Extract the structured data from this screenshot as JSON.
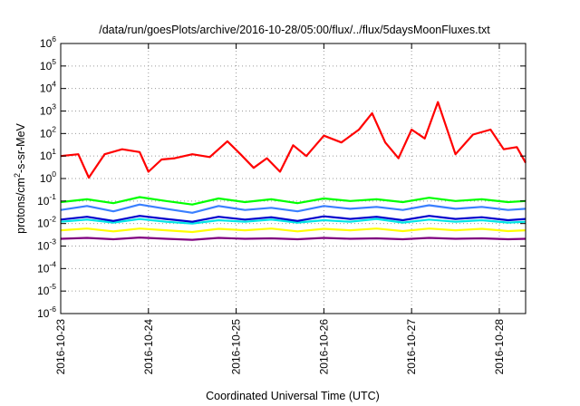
{
  "chart_data": {
    "type": "line",
    "title": "/data/run/goesPlots/archive/2016-10-28/05:00/flux/../flux/5daysMoonFluxes.txt",
    "xlabel": "Coordinated Universal Time (UTC)",
    "ylabel": {
      "prefix": "protons/cm",
      "sup": "2",
      "suffix": "-s-sr-MeV"
    },
    "yscale": "log",
    "ylim_exponents": [
      -6,
      6
    ],
    "x_ticks": [
      "2016-10-23",
      "2016-10-24",
      "2016-10-25",
      "2016-10-26",
      "2016-10-27",
      "2016-10-28"
    ],
    "x_range_days": [
      0,
      5.3
    ],
    "grid": true,
    "legend": "none",
    "series": [
      {
        "color": "#ff0000",
        "x": [
          0.0,
          0.2,
          0.32,
          0.5,
          0.7,
          0.9,
          1.0,
          1.15,
          1.3,
          1.5,
          1.7,
          1.9,
          2.05,
          2.2,
          2.35,
          2.5,
          2.65,
          2.8,
          3.0,
          3.2,
          3.4,
          3.55,
          3.7,
          3.85,
          4.0,
          4.15,
          4.3,
          4.5,
          4.7,
          4.9,
          5.05,
          5.2,
          5.3
        ],
        "y": [
          10,
          12,
          1.1,
          12,
          20,
          15,
          2,
          7,
          8,
          12,
          9,
          45,
          12,
          3,
          8,
          2,
          30,
          10,
          80,
          40,
          150,
          800,
          40,
          8,
          150,
          60,
          2500,
          12,
          90,
          150,
          20,
          25,
          5
        ]
      },
      {
        "color": "#00ff00",
        "x": [
          0.0,
          0.3,
          0.6,
          0.9,
          1.2,
          1.5,
          1.8,
          2.1,
          2.4,
          2.7,
          3.0,
          3.3,
          3.6,
          3.9,
          4.2,
          4.5,
          4.8,
          5.1,
          5.3
        ],
        "y": [
          0.09,
          0.12,
          0.08,
          0.15,
          0.1,
          0.07,
          0.13,
          0.09,
          0.12,
          0.08,
          0.13,
          0.1,
          0.12,
          0.09,
          0.14,
          0.1,
          0.12,
          0.09,
          0.1
        ]
      },
      {
        "color": "#3a7fff",
        "x": [
          0.0,
          0.3,
          0.6,
          0.9,
          1.2,
          1.5,
          1.8,
          2.1,
          2.4,
          2.7,
          3.0,
          3.3,
          3.6,
          3.9,
          4.2,
          4.5,
          4.8,
          5.1,
          5.3
        ],
        "y": [
          0.04,
          0.06,
          0.035,
          0.07,
          0.045,
          0.03,
          0.06,
          0.04,
          0.05,
          0.035,
          0.06,
          0.045,
          0.055,
          0.04,
          0.065,
          0.045,
          0.055,
          0.04,
          0.045
        ]
      },
      {
        "color": "#00e5e5",
        "x": [
          0.0,
          0.3,
          0.6,
          0.9,
          1.2,
          1.5,
          1.8,
          2.1,
          2.4,
          2.7,
          3.0,
          3.3,
          3.6,
          3.9,
          4.2,
          4.5,
          4.8,
          5.1,
          5.3
        ],
        "y": [
          0.012,
          0.015,
          0.011,
          0.016,
          0.012,
          0.01,
          0.014,
          0.012,
          0.015,
          0.011,
          0.014,
          0.012,
          0.016,
          0.011,
          0.015,
          0.012,
          0.014,
          0.011,
          0.012
        ]
      },
      {
        "color": "#0000cc",
        "x": [
          0.0,
          0.3,
          0.6,
          0.9,
          1.2,
          1.5,
          1.8,
          2.1,
          2.4,
          2.7,
          3.0,
          3.3,
          3.6,
          3.9,
          4.2,
          4.5,
          4.8,
          5.1,
          5.3
        ],
        "y": [
          0.015,
          0.02,
          0.013,
          0.022,
          0.016,
          0.012,
          0.02,
          0.015,
          0.019,
          0.013,
          0.021,
          0.016,
          0.02,
          0.014,
          0.022,
          0.016,
          0.019,
          0.014,
          0.016
        ]
      },
      {
        "color": "#ffff00",
        "x": [
          0.0,
          0.3,
          0.6,
          0.9,
          1.2,
          1.5,
          1.8,
          2.1,
          2.4,
          2.7,
          3.0,
          3.3,
          3.6,
          3.9,
          4.2,
          4.5,
          4.8,
          5.1,
          5.3
        ],
        "y": [
          0.005,
          0.006,
          0.0045,
          0.006,
          0.005,
          0.0042,
          0.0058,
          0.005,
          0.006,
          0.0045,
          0.0058,
          0.005,
          0.006,
          0.0046,
          0.006,
          0.005,
          0.0058,
          0.0046,
          0.005
        ]
      },
      {
        "color": "#800080",
        "x": [
          0.0,
          0.3,
          0.6,
          0.9,
          1.2,
          1.5,
          1.8,
          2.1,
          2.4,
          2.7,
          3.0,
          3.3,
          3.6,
          3.9,
          4.2,
          4.5,
          4.8,
          5.1,
          5.3
        ],
        "y": [
          0.0021,
          0.0023,
          0.002,
          0.0024,
          0.0021,
          0.0019,
          0.0023,
          0.0021,
          0.0022,
          0.002,
          0.0023,
          0.0021,
          0.0022,
          0.002,
          0.0023,
          0.0021,
          0.0022,
          0.002,
          0.0021
        ]
      }
    ]
  }
}
